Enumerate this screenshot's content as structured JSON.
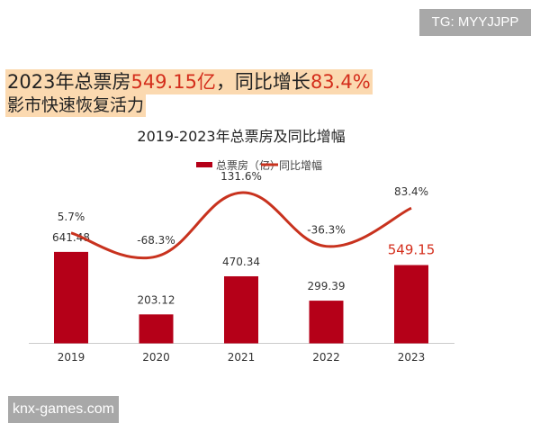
{
  "watermarks": {
    "top": "TG: MYYJJPP",
    "bottom": "knx-games.com"
  },
  "headline": {
    "line1_a": "2023年总票房",
    "line1_b": "549.15亿",
    "line1_c": "，同比增长",
    "line1_d": "83.4%",
    "line2": "影市快速恢复活力"
  },
  "colors": {
    "bar": "#b50018",
    "line": "#c8321e",
    "highlight": "#fbd9b0",
    "accent_text": "#d42e1c"
  },
  "chart_data": {
    "type": "bar+line",
    "title": "2019-2023年总票房及同比增幅",
    "categories": [
      "2019",
      "2020",
      "2021",
      "2022",
      "2023"
    ],
    "series": [
      {
        "name": "总票房（亿）",
        "type": "bar",
        "values": [
          641.48,
          203.12,
          470.34,
          299.39,
          549.15
        ],
        "labels": [
          "641.48",
          "203.12",
          "470.34",
          "299.39",
          "549.15"
        ]
      },
      {
        "name": "同比增幅",
        "type": "line",
        "smooth": true,
        "values": [
          5.7,
          -68.3,
          131.6,
          -36.3,
          83.4
        ],
        "labels": [
          "5.7%",
          "-68.3%",
          "131.6%",
          "-36.3%",
          "83.4%"
        ]
      }
    ],
    "legend": "top-center",
    "grid": false
  }
}
